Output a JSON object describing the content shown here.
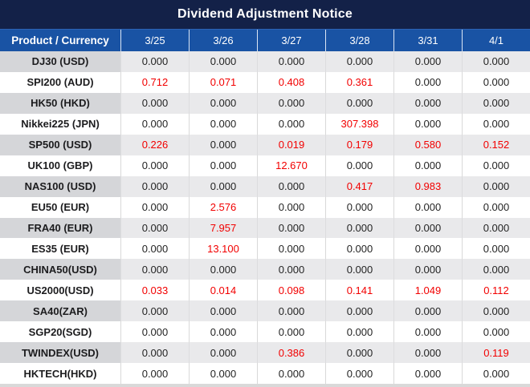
{
  "title": "Dividend Adjustment Notice",
  "colors": {
    "title_bg": "#132148",
    "header_bg": "#1953a4",
    "stripe_label": "#d5d6d9",
    "stripe_value": "#e9e9eb",
    "grid_line": "#d9d9d9",
    "highlight_red": "#f20000",
    "text_black": "#242424"
  },
  "table": {
    "zero_value": "0.000",
    "columns": [
      "Product / Currency",
      "3/25",
      "3/26",
      "3/27",
      "3/28",
      "3/31",
      "4/1"
    ],
    "rows": [
      {
        "product": "DJ30 (USD)",
        "values": [
          "0.000",
          "0.000",
          "0.000",
          "0.000",
          "0.000",
          "0.000"
        ]
      },
      {
        "product": "SPI200 (AUD)",
        "values": [
          "0.712",
          "0.071",
          "0.408",
          "0.361",
          "0.000",
          "0.000"
        ]
      },
      {
        "product": "HK50 (HKD)",
        "values": [
          "0.000",
          "0.000",
          "0.000",
          "0.000",
          "0.000",
          "0.000"
        ]
      },
      {
        "product": "Nikkei225 (JPN)",
        "values": [
          "0.000",
          "0.000",
          "0.000",
          "307.398",
          "0.000",
          "0.000"
        ]
      },
      {
        "product": "SP500 (USD)",
        "values": [
          "0.226",
          "0.000",
          "0.019",
          "0.179",
          "0.580",
          "0.152"
        ]
      },
      {
        "product": "UK100 (GBP)",
        "values": [
          "0.000",
          "0.000",
          "12.670",
          "0.000",
          "0.000",
          "0.000"
        ]
      },
      {
        "product": "NAS100 (USD)",
        "values": [
          "0.000",
          "0.000",
          "0.000",
          "0.417",
          "0.983",
          "0.000"
        ]
      },
      {
        "product": "EU50 (EUR)",
        "values": [
          "0.000",
          "2.576",
          "0.000",
          "0.000",
          "0.000",
          "0.000"
        ]
      },
      {
        "product": "FRA40 (EUR)",
        "values": [
          "0.000",
          "7.957",
          "0.000",
          "0.000",
          "0.000",
          "0.000"
        ]
      },
      {
        "product": "ES35 (EUR)",
        "values": [
          "0.000",
          "13.100",
          "0.000",
          "0.000",
          "0.000",
          "0.000"
        ]
      },
      {
        "product": "CHINA50(USD)",
        "values": [
          "0.000",
          "0.000",
          "0.000",
          "0.000",
          "0.000",
          "0.000"
        ]
      },
      {
        "product": "US2000(USD)",
        "values": [
          "0.033",
          "0.014",
          "0.098",
          "0.141",
          "1.049",
          "0.112"
        ]
      },
      {
        "product": "SA40(ZAR)",
        "values": [
          "0.000",
          "0.000",
          "0.000",
          "0.000",
          "0.000",
          "0.000"
        ]
      },
      {
        "product": "SGP20(SGD)",
        "values": [
          "0.000",
          "0.000",
          "0.000",
          "0.000",
          "0.000",
          "0.000"
        ]
      },
      {
        "product": "TWINDEX(USD)",
        "values": [
          "0.000",
          "0.000",
          "0.386",
          "0.000",
          "0.000",
          "0.119"
        ]
      },
      {
        "product": "HKTECH(HKD)",
        "values": [
          "0.000",
          "0.000",
          "0.000",
          "0.000",
          "0.000",
          "0.000"
        ]
      }
    ]
  }
}
